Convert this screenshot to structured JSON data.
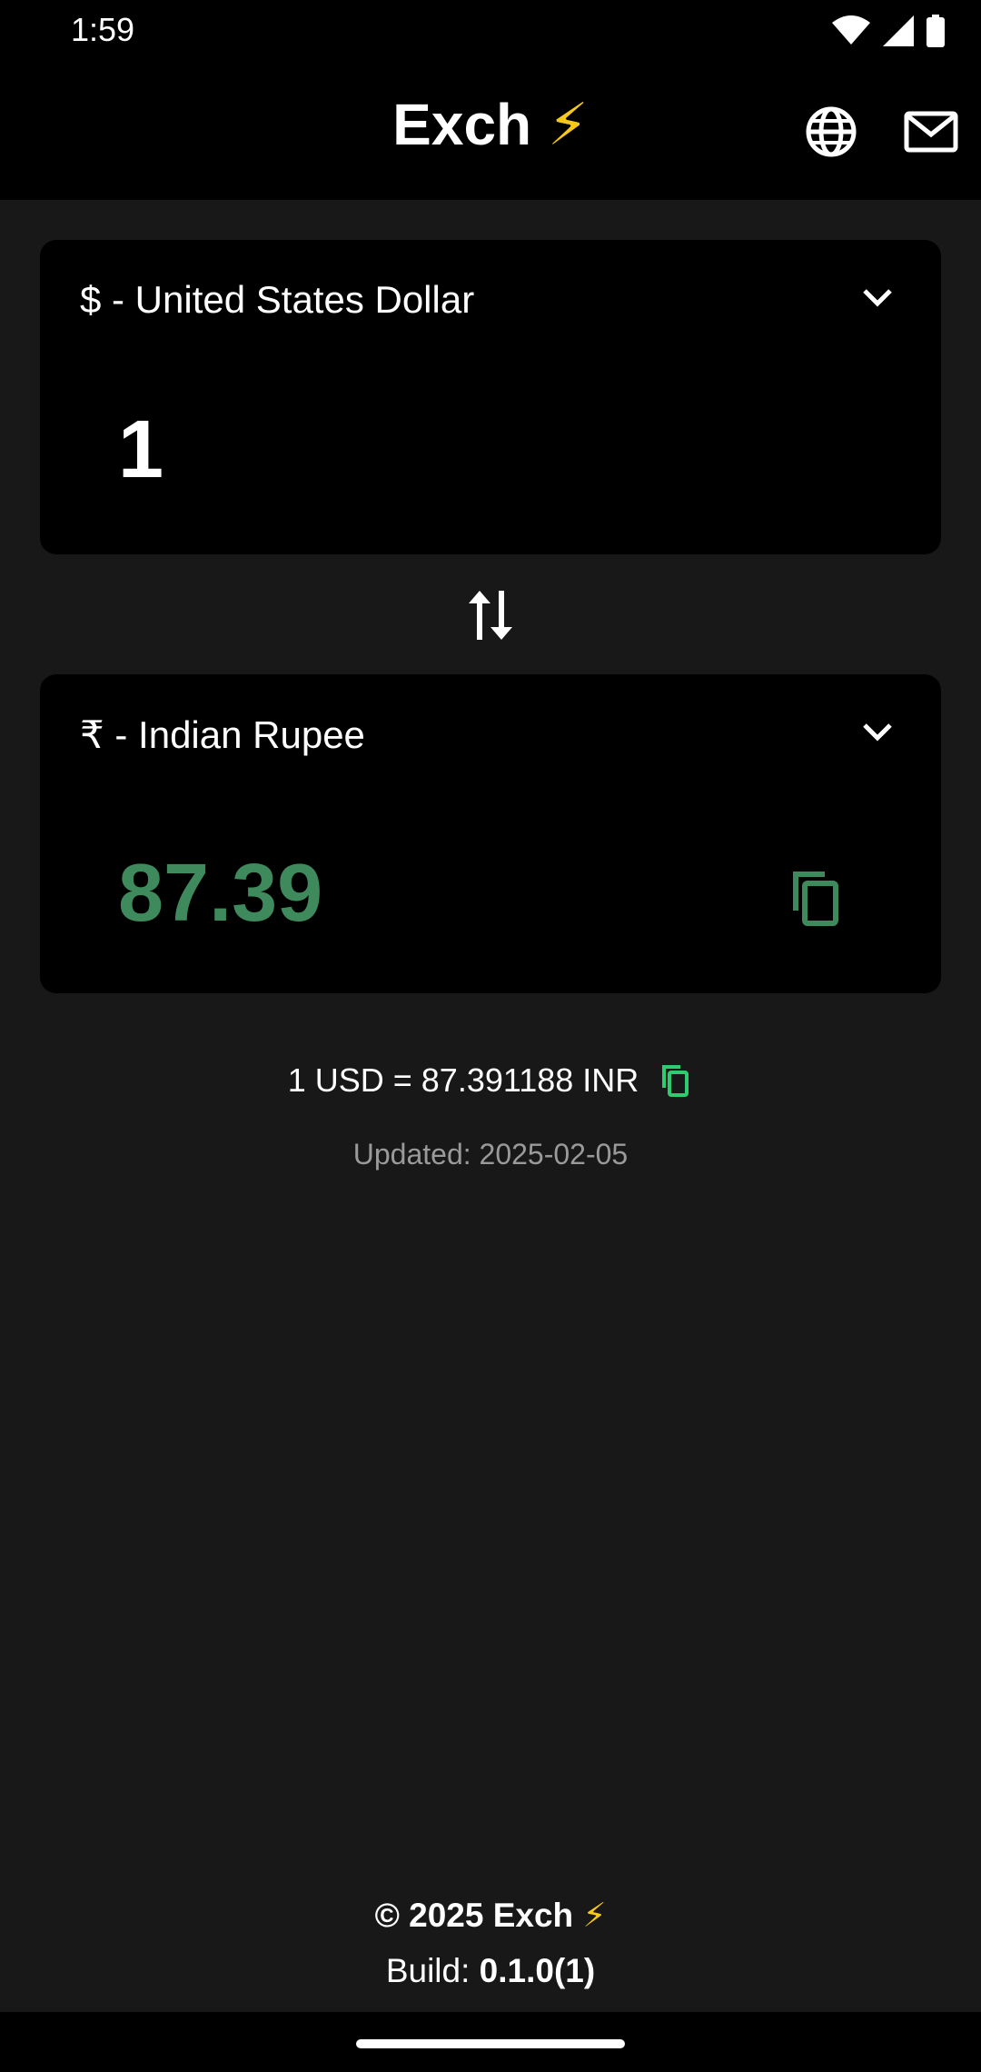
{
  "status_bar": {
    "time": "1:59",
    "icons": [
      "wifi-icon",
      "signal-icon",
      "battery-icon"
    ]
  },
  "app_bar": {
    "title": "Exch",
    "title_emoji": "⚡",
    "actions": [
      "globe-icon",
      "mail-icon"
    ]
  },
  "from_card": {
    "currency_label": "$ - United States Dollar",
    "amount": "1"
  },
  "to_card": {
    "currency_label": "₹ - Indian Rupee",
    "amount": "87.39"
  },
  "rate": {
    "text": "1 USD = 87.391188 INR",
    "updated": "Updated: 2025-02-05"
  },
  "footer": {
    "copyright": "© 2025 Exch",
    "emoji": "⚡",
    "build_label": "Build:",
    "build_value": "0.1.0(1)"
  },
  "colors": {
    "background": "#181818",
    "card": "#000000",
    "result_green": "#3e8a5c",
    "copy_green": "#2ecc71",
    "bolt_yellow": "#f6c81a"
  }
}
